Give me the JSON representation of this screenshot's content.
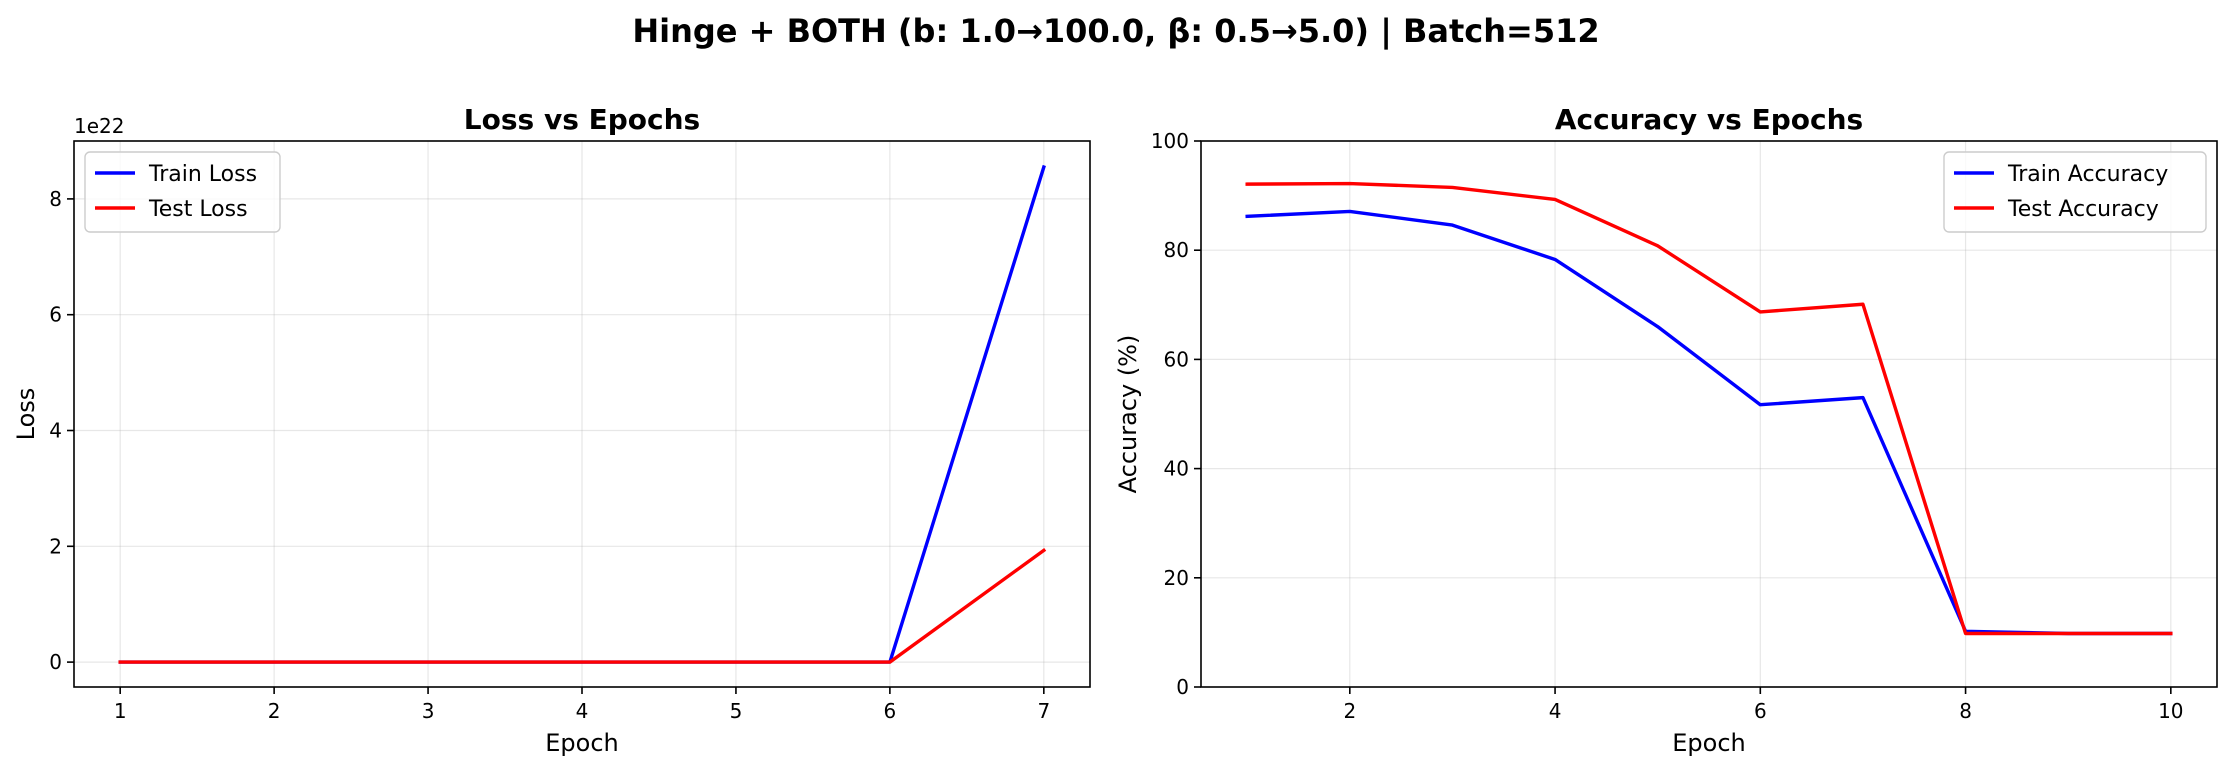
{
  "figure": {
    "title": "Hinge + BOTH (b: 1.0→100.0, β: 0.5→5.0) | Batch=512"
  },
  "chart_data": [
    {
      "type": "line",
      "title": "Loss vs Epochs",
      "xlabel": "Epoch",
      "ylabel": "Loss",
      "y_offset_label": "1e22",
      "xlim": [
        0.7,
        7.3
      ],
      "ylim": [
        -0.43,
        9.0
      ],
      "xticks": [
        1,
        2,
        3,
        4,
        5,
        6,
        7
      ],
      "yticks": [
        0,
        2,
        4,
        6,
        8
      ],
      "grid": true,
      "legend_position": "upper-left",
      "x": [
        1,
        2,
        3,
        4,
        5,
        6,
        7
      ],
      "series": [
        {
          "name": "Train Loss",
          "color": "#0000ff",
          "values": [
            0.0,
            0.0,
            0.0,
            0.0,
            0.0,
            0.0,
            8.55
          ]
        },
        {
          "name": "Test Loss",
          "color": "#ff0000",
          "values": [
            0.0,
            0.0,
            0.0,
            0.0,
            0.0,
            0.0,
            1.93
          ]
        }
      ]
    },
    {
      "type": "line",
      "title": "Accuracy vs Epochs",
      "xlabel": "Epoch",
      "ylabel": "Accuracy (%)",
      "xlim": [
        0.55,
        10.45
      ],
      "ylim": [
        0,
        100
      ],
      "xticks": [
        2,
        4,
        6,
        8,
        10
      ],
      "yticks": [
        0,
        20,
        40,
        60,
        80,
        100
      ],
      "grid": true,
      "legend_position": "upper-right",
      "x": [
        1,
        2,
        3,
        4,
        5,
        6,
        7,
        8,
        9,
        10
      ],
      "series": [
        {
          "name": "Train Accuracy",
          "color": "#0000ff",
          "values": [
            86.2,
            87.1,
            84.6,
            78.3,
            66.0,
            51.7,
            53.0,
            10.2,
            9.8,
            9.8
          ]
        },
        {
          "name": "Test Accuracy",
          "color": "#ff0000",
          "values": [
            92.1,
            92.2,
            91.5,
            89.3,
            80.8,
            68.7,
            70.1,
            9.8,
            9.8,
            9.8
          ]
        }
      ]
    }
  ]
}
